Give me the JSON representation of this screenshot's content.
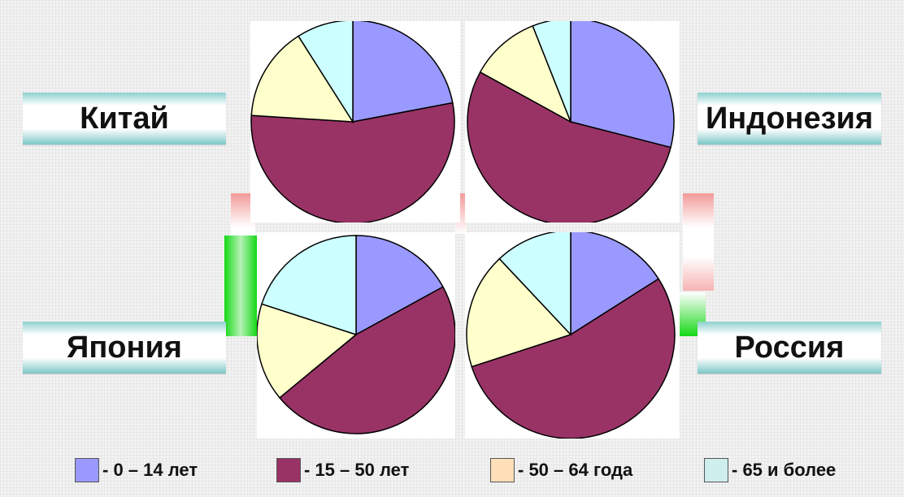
{
  "chart_data": [
    {
      "type": "pie",
      "label": "Китай",
      "categories": [
        "- 0 – 14 лет",
        "- 15 – 50 лет",
        "- 50 – 64 года",
        "- 65 и более"
      ],
      "values": [
        22,
        54,
        15,
        9
      ]
    },
    {
      "type": "pie",
      "label": "Индонезия",
      "categories": [
        "- 0 – 14 лет",
        "- 15 – 50 лет",
        "- 50 – 64 года",
        "- 65 и более"
      ],
      "values": [
        29,
        54,
        11,
        6
      ]
    },
    {
      "type": "pie",
      "label": "Япония",
      "categories": [
        "- 0 – 14 лет",
        "- 15 – 50 лет",
        "- 50 – 64 года",
        "- 65 и более"
      ],
      "values": [
        17,
        47,
        16,
        20
      ]
    },
    {
      "type": "pie",
      "label": "Россия",
      "categories": [
        "- 0 – 14 лет",
        "- 15 – 50 лет",
        "- 50 – 64 года",
        "- 65 и более"
      ],
      "values": [
        16,
        54,
        18,
        12
      ]
    }
  ],
  "countries": {
    "china": "Китай",
    "indonesia": "Индонезия",
    "japan": "Япония",
    "russia": "Россия"
  },
  "legend": [
    {
      "label": "- 0 – 14 лет",
      "color": "#9999ff"
    },
    {
      "label": "- 15 – 50 лет",
      "color": "#993366"
    },
    {
      "label": "- 50 – 64 года",
      "color": "#ffe0b8"
    },
    {
      "label": "- 65 и более",
      "color": "#cfeeee"
    }
  ],
  "slice_colors": [
    "#9999ff",
    "#993366",
    "#ffffcc",
    "#ccffff"
  ]
}
